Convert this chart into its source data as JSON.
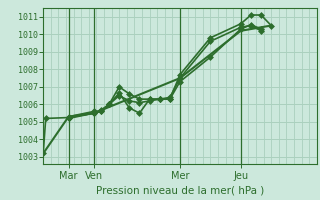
{
  "xlabel": "Pression niveau de la mer( hPa )",
  "bg_color": "#cce8dc",
  "grid_color": "#aad0be",
  "line_color": "#2d6e2d",
  "marker_color": "#2d6e2d",
  "yticks": [
    1003,
    1004,
    1005,
    1006,
    1007,
    1008,
    1009,
    1010,
    1011
  ],
  "ylim": [
    1002.6,
    1011.5
  ],
  "xlim": [
    0,
    54
  ],
  "xtick_positions": [
    5,
    10,
    27,
    39
  ],
  "xtick_labels": [
    "Mar",
    "Ven",
    "Mer",
    "Jeu"
  ],
  "vlines": [
    5,
    10,
    27,
    39
  ],
  "series": [
    {
      "x": [
        0,
        0.5,
        5,
        10,
        11.5,
        13,
        15,
        17,
        19,
        21,
        23,
        25,
        27,
        33,
        39,
        41,
        43,
        45
      ],
      "y": [
        1003.2,
        1005.2,
        1005.25,
        1005.5,
        1005.6,
        1006.0,
        1006.65,
        1005.8,
        1005.5,
        1006.3,
        1006.3,
        1006.3,
        1007.7,
        1009.8,
        1010.6,
        1011.1,
        1011.1,
        1010.5
      ],
      "marker": "D",
      "markersize": 3.0,
      "linewidth": 1.2
    },
    {
      "x": [
        5,
        10,
        11.5,
        13,
        15,
        17,
        19,
        21,
        23,
        25,
        27,
        33,
        39,
        41,
        43
      ],
      "y": [
        1005.3,
        1005.6,
        1005.6,
        1006.0,
        1007.0,
        1006.6,
        1006.3,
        1006.3,
        1006.3,
        1006.3,
        1007.3,
        1008.7,
        1010.3,
        1010.55,
        1010.3
      ],
      "marker": "D",
      "markersize": 3.0,
      "linewidth": 1.2
    },
    {
      "x": [
        5,
        10,
        11.5,
        13,
        15,
        17,
        19,
        21,
        23,
        25,
        27,
        33,
        39,
        41,
        43
      ],
      "y": [
        1005.2,
        1005.5,
        1005.7,
        1006.0,
        1006.5,
        1006.2,
        1006.1,
        1006.2,
        1006.3,
        1006.4,
        1007.5,
        1009.6,
        1010.4,
        1010.5,
        1010.2
      ],
      "marker": "D",
      "markersize": 3.0,
      "linewidth": 1.2
    },
    {
      "x": [
        0,
        5,
        10,
        27,
        39,
        45
      ],
      "y": [
        1003.2,
        1005.3,
        1005.5,
        1007.5,
        1010.2,
        1010.5
      ],
      "marker": null,
      "markersize": 0,
      "linewidth": 1.5
    }
  ]
}
